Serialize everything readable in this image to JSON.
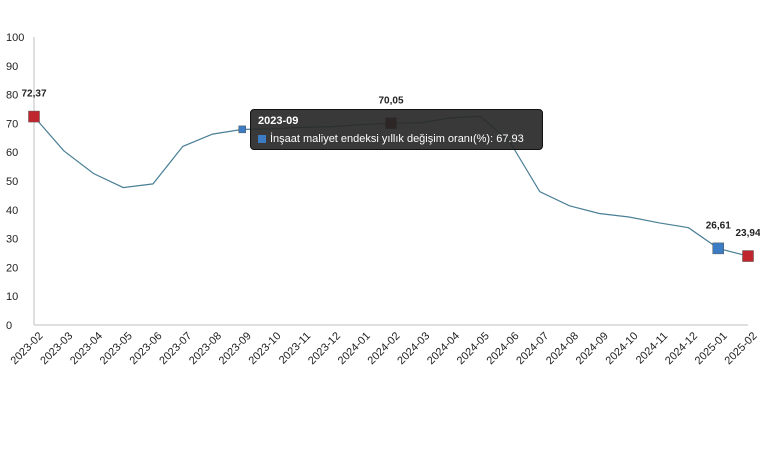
{
  "chart_data": {
    "type": "line",
    "x": [
      "2023-02",
      "2023-03",
      "2023-04",
      "2023-05",
      "2023-06",
      "2023-07",
      "2023-08",
      "2023-09",
      "2023-10",
      "2023-11",
      "2023-12",
      "2024-01",
      "2024-02",
      "2024-03",
      "2024-04",
      "2024-05",
      "2024-06",
      "2024-07",
      "2024-08",
      "2024-09",
      "2024-10",
      "2024-11",
      "2024-12",
      "2025-01",
      "2025-02"
    ],
    "series": [
      {
        "name": "İnşaat maliyet endeksi yıllık değişim oranı(%)",
        "values": [
          72.37,
          60.5,
          52.6,
          47.7,
          49.0,
          62.0,
          66.3,
          67.93,
          68.1,
          68.6,
          68.9,
          69.6,
          70.05,
          70.2,
          71.9,
          72.5,
          63.5,
          46.3,
          41.4,
          38.7,
          37.5,
          35.5,
          33.8,
          26.61,
          23.94
        ],
        "color": "#4a7f96"
      }
    ],
    "ylim": [
      0,
      100
    ],
    "yticks": [
      0,
      10,
      20,
      30,
      40,
      50,
      60,
      70,
      80,
      90,
      100
    ],
    "grid": false,
    "markers": [
      {
        "x": "2023-02",
        "label": "72,37",
        "color": "#c0262d"
      },
      {
        "x": "2023-09",
        "label": "",
        "color": "#3b7cc4"
      },
      {
        "x": "2024-02",
        "label": "70,05",
        "color": "#5a0f0f"
      },
      {
        "x": "2025-01",
        "label": "26,61",
        "color": "#3b7cc4"
      },
      {
        "x": "2025-02",
        "label": "23,94",
        "color": "#c0262d"
      }
    ],
    "tooltip": {
      "title": "2023-09",
      "label": "İnşaat maliyet endeksi yıllık değişim oranı(%): 67.93",
      "swatch_color": "#3b7cc4"
    }
  }
}
